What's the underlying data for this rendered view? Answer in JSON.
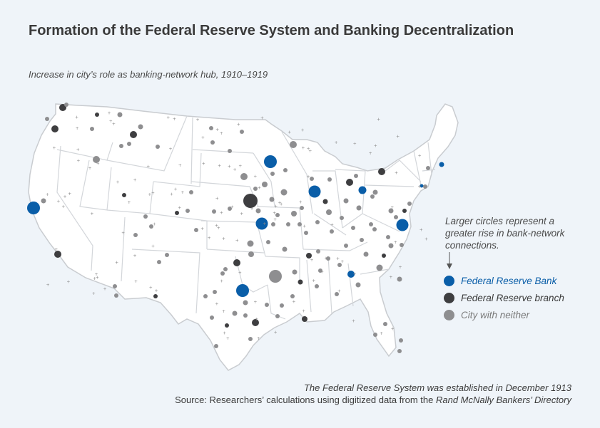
{
  "title": "Formation of the Federal Reserve System and Banking Decentralization",
  "subtitle": "Increase in city’s role as banking-network hub, 1910–1919",
  "note": "Larger circles represent a greater rise in bank-network connections.",
  "legend": [
    {
      "label": "Federal Reserve Bank",
      "color": "#0a5ea8",
      "text_color": "#0a5ea8"
    },
    {
      "label": "Federal Reserve branch",
      "color": "#3e3e40",
      "text_color": "#3a3a3a"
    },
    {
      "label": "City with neither",
      "color": "#8e8e90",
      "text_color": "#7a7a7a"
    }
  ],
  "footer": {
    "line1": "The Federal Reserve System was established in December 1913",
    "line2_prefix": "Source: Researchers’ calculations using digitized data from the ",
    "line2_source": "Rand McNally Bankers’ Directory"
  },
  "colors": {
    "map_fill": "#ffffff",
    "state_border": "#c9ccd0",
    "background": "#eff4f9"
  }
}
